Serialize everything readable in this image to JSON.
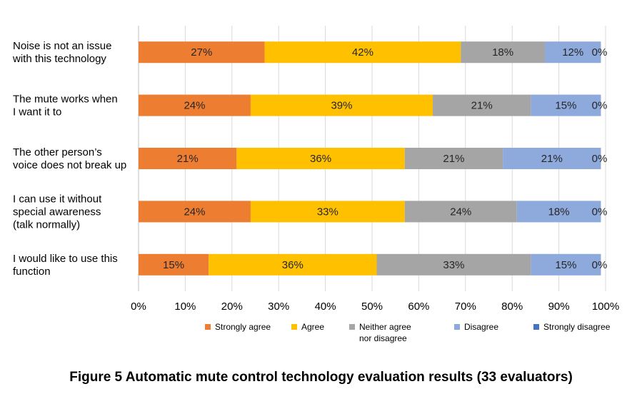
{
  "caption": "Figure 5  Automatic mute control technology evaluation results (33 evaluators)",
  "chart_data": {
    "type": "bar",
    "orientation": "horizontal",
    "stacked": "percent",
    "categories": [
      "Noise is not an issue with this technology",
      "The mute works when I want it to",
      "The other person’s voice does not break up",
      "I can use it without special awareness (talk normally)",
      "I would like to use this function"
    ],
    "category_lines": [
      [
        "Noise is not an issue",
        "with this technology"
      ],
      [
        "The mute works when",
        "I want it to"
      ],
      [
        "The other person’s",
        "voice does not break up"
      ],
      [
        "I can use it without",
        "special awareness",
        "(talk normally)"
      ],
      [
        "I would like to use this",
        "function"
      ]
    ],
    "series": [
      {
        "name": "Strongly agree",
        "color": "#ED7D31",
        "values": [
          27,
          24,
          21,
          24,
          15
        ],
        "labels": [
          "27%",
          "24%",
          "21%",
          "24%",
          "15%"
        ]
      },
      {
        "name": "Agree",
        "color": "#FFC000",
        "values": [
          42,
          39,
          36,
          33,
          36
        ],
        "labels": [
          "42%",
          "39%",
          "36%",
          "33%",
          "36%"
        ]
      },
      {
        "name": "Neither agree nor disagree",
        "legend_lines": [
          "Neither agree",
          "nor disagree"
        ],
        "color": "#A5A5A5",
        "values": [
          18,
          21,
          21,
          24,
          33
        ],
        "labels": [
          "18%",
          "21%",
          "21%",
          "24%",
          "33%"
        ]
      },
      {
        "name": "Disagree",
        "color": "#8EA9DB",
        "values": [
          12,
          15,
          21,
          18,
          15
        ],
        "labels": [
          "12%",
          "15%",
          "21%",
          "18%",
          "15%"
        ]
      },
      {
        "name": "Strongly disagree",
        "color": "#4472C4",
        "values": [
          0,
          0,
          0,
          0,
          0
        ],
        "labels": [
          "0%",
          "0%",
          "0%",
          "0%",
          "0%"
        ]
      }
    ],
    "xlim": [
      0,
      100
    ],
    "xticks": [
      "0%",
      "10%",
      "20%",
      "30%",
      "40%",
      "50%",
      "60%",
      "70%",
      "80%",
      "90%",
      "100%"
    ],
    "grid": "vertical",
    "legend_position": "bottom"
  }
}
